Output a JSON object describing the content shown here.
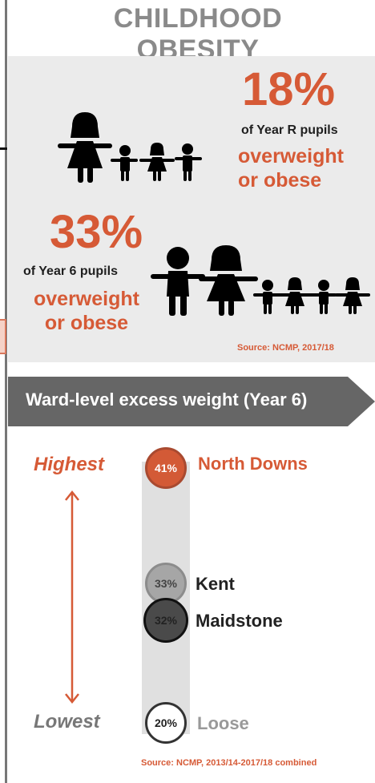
{
  "title": "CHILDHOOD OBESITY",
  "year_r": {
    "percent": "18%",
    "subtitle": "of Year R pupils",
    "line1": "overweight",
    "line2": "or obese"
  },
  "year_6": {
    "percent": "33%",
    "subtitle": "of Year 6 pupils",
    "line1": "overweight",
    "line2": "or obese"
  },
  "source_top": "Source: NCMP, 2017/18",
  "banner_title": "Ward-level excess weight (Year 6)",
  "scale": {
    "highest": "Highest",
    "lowest": "Lowest"
  },
  "wards": [
    {
      "pct": "41%",
      "name": "North Downs"
    },
    {
      "pct": "33%",
      "name": "Kent"
    },
    {
      "pct": "32%",
      "name": "Maidstone"
    },
    {
      "pct": "20%",
      "name": "Loose"
    }
  ],
  "source_bottom": "Source: NCMP, 2013/14-2017/18 combined",
  "colors": {
    "accent": "#d65a36",
    "title_gray": "#8a8a8a",
    "banner": "#666666",
    "panel": "#ebebeb"
  },
  "icons": [
    "girl-figure-icon",
    "boy-figure-icon",
    "child-figure-icon",
    "double-arrow-icon"
  ]
}
